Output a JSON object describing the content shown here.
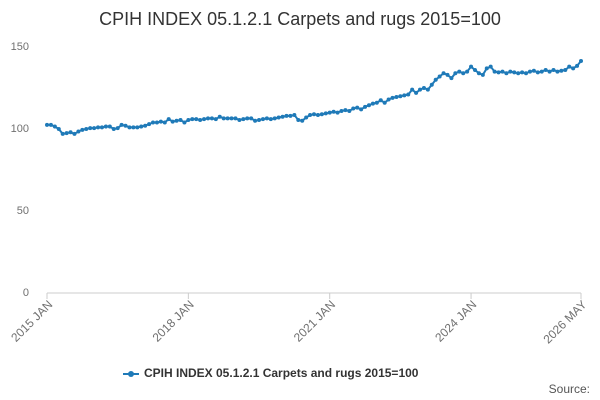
{
  "chart_data": {
    "type": "line",
    "title": "CPIH INDEX 05.1.2.1 Carpets and rugs 2015=100",
    "categories": [
      "2015 JAN",
      null,
      null,
      null,
      null,
      null,
      null,
      null,
      null,
      null,
      null,
      null,
      null,
      null,
      null,
      null,
      null,
      null,
      null,
      null,
      null,
      null,
      null,
      null,
      null,
      null,
      null,
      null,
      null,
      null,
      null,
      null,
      null,
      null,
      null,
      null,
      "2018 JAN",
      null,
      null,
      null,
      null,
      null,
      null,
      null,
      null,
      null,
      null,
      null,
      null,
      null,
      null,
      null,
      null,
      null,
      null,
      null,
      null,
      null,
      null,
      null,
      null,
      null,
      null,
      null,
      null,
      null,
      null,
      null,
      null,
      null,
      null,
      null,
      "2021 JAN",
      null,
      null,
      null,
      null,
      null,
      null,
      null,
      null,
      null,
      null,
      null,
      null,
      null,
      null,
      null,
      null,
      null,
      null,
      null,
      null,
      null,
      null,
      null,
      null,
      null,
      null,
      null,
      null,
      null,
      null,
      null,
      null,
      null,
      null,
      null,
      "2024 JAN",
      null,
      null,
      null,
      null,
      null,
      null,
      null,
      null,
      null,
      null,
      null,
      null,
      null,
      null,
      null,
      null,
      null,
      null,
      null,
      null,
      null,
      null,
      null,
      null,
      null,
      null,
      null,
      "2026 MAY"
    ],
    "series": [
      {
        "name": "CPIH INDEX 05.1.2.1 Carpets and rugs 2015=100",
        "color": "#1f7ab8",
        "values": [
          102.5,
          102.5,
          101.5,
          100,
          97,
          97.5,
          98,
          97,
          98.5,
          99.5,
          100,
          100.5,
          100.5,
          101,
          101,
          101.5,
          101.5,
          100,
          100.5,
          102.5,
          102,
          101,
          101,
          101,
          101.5,
          102,
          103,
          104,
          104,
          104.5,
          104,
          106,
          104.5,
          105,
          105.5,
          104,
          105.5,
          106,
          106,
          105.5,
          106,
          106.5,
          106.5,
          106,
          107.5,
          106.5,
          106.5,
          106.5,
          106.5,
          105.5,
          106,
          106.5,
          106.5,
          105,
          105.5,
          106,
          106.5,
          106,
          106.5,
          107,
          107.5,
          108,
          108,
          108.5,
          105.5,
          105,
          107,
          108.5,
          109,
          108.5,
          109,
          109.5,
          110,
          110.5,
          110,
          111,
          111.5,
          111,
          112.5,
          113,
          112,
          113.5,
          114.5,
          115.5,
          116,
          117.5,
          116,
          118,
          119,
          119.5,
          120,
          120.5,
          121,
          124,
          122,
          124,
          125,
          124,
          127,
          130,
          132,
          134,
          133,
          131,
          134,
          135,
          134,
          135,
          138,
          136,
          134,
          133,
          137,
          138,
          135,
          134.5,
          135,
          134,
          135,
          134.5,
          134,
          134.5,
          134,
          135,
          135.5,
          134.5,
          135,
          136,
          135,
          136,
          135,
          135.5,
          136,
          138,
          137,
          138.5,
          141.5
        ]
      }
    ],
    "ylim": [
      0,
      150
    ],
    "yticks": [
      0,
      50,
      100,
      150
    ],
    "grid": false,
    "legend": "bottom",
    "source": "Source:"
  }
}
